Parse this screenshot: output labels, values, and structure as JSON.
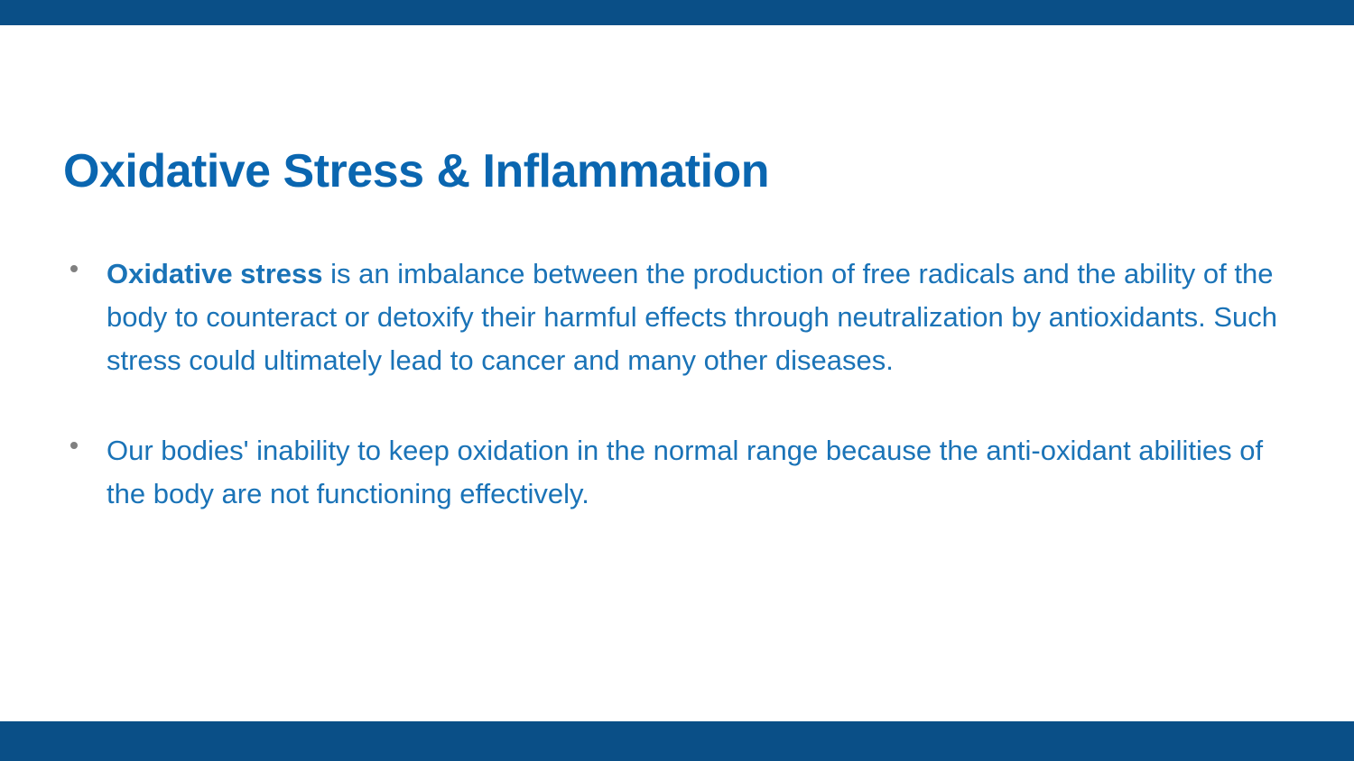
{
  "slide": {
    "title": "Oxidative Stress & Inflammation",
    "bullets": [
      {
        "bold_term": "Oxidative stress",
        "rest": " is an imbalance between the production of free radicals and the ability of the body to counteract or detoxify their harmful effects through neutralization by antioxidants. Such stress could ultimately lead to cancer and many other diseases."
      },
      {
        "bold_term": "",
        "rest": "Our bodies' inability to keep oxidation in the normal range because the anti-oxidant abilities of the body are not functioning effectively."
      }
    ]
  },
  "styling": {
    "title_color": "#0a66b0",
    "text_color": "#1a73b7",
    "bar_color": "#0a4f87",
    "bullet_marker_color": "#808080",
    "background_color": "#ffffff",
    "title_fontsize": 52,
    "body_fontsize": 31,
    "top_bar_height": 28,
    "bottom_bar_height": 44
  }
}
